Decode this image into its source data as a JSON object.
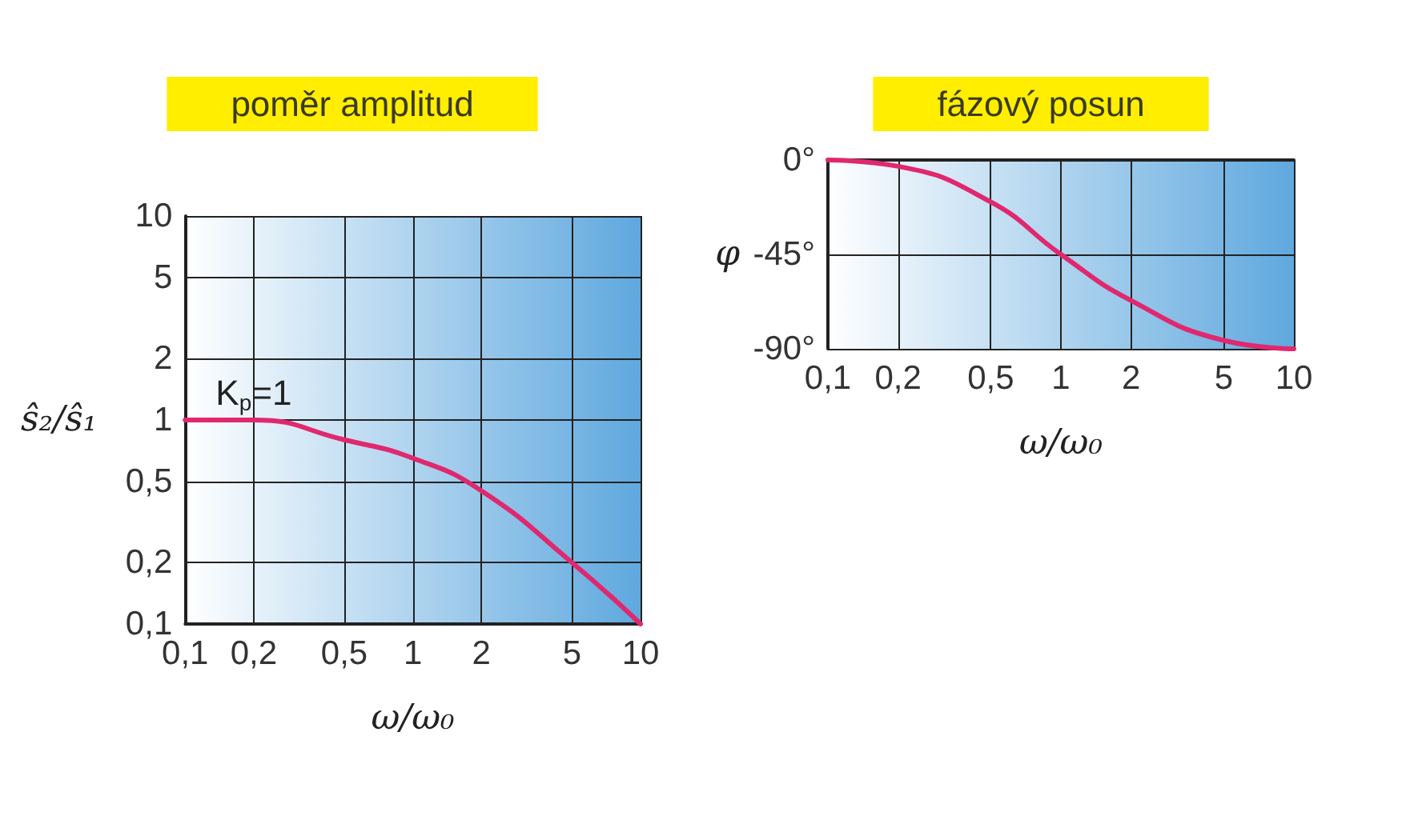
{
  "chart_data": [
    {
      "type": "line",
      "title": "poměr amplitud",
      "xlabel": "ω/ω₀",
      "ylabel": "ŝ₂/ŝ₁",
      "log": "xy",
      "grid": true,
      "marker": "none",
      "line_style": "solid",
      "x": [
        0.1,
        0.2,
        0.5,
        1,
        2,
        5,
        10
      ],
      "series": [
        {
          "color": "#e0286e",
          "values": [
            1,
            1,
            0.8,
            0.65,
            0.45,
            0.2,
            0.1
          ]
        }
      ],
      "xlim": [
        0.1,
        10
      ],
      "xticks": [
        {
          "value": 0.1,
          "label": "0,1"
        },
        {
          "value": 0.2,
          "label": "0,2"
        },
        {
          "value": 0.5,
          "label": "0,5"
        },
        1,
        2,
        5,
        10
      ],
      "ylim": [
        0.1,
        10
      ],
      "yticks": [
        {
          "value": 0.1,
          "label": "0,1"
        },
        {
          "value": 0.2,
          "label": "0,2"
        },
        {
          "value": 0.5,
          "label": "0,5"
        },
        1,
        2,
        5,
        10
      ],
      "annotations": [
        {
          "text": "K$_{p}$=1",
          "x": 0.2,
          "y": 1
        }
      ]
    },
    {
      "type": "line",
      "title": "fázový posun",
      "xlabel": "ω/ω₀",
      "ylabel": "φ",
      "log": "x",
      "grid": true,
      "marker": "none",
      "line_style": "solid",
      "x": [
        0.1,
        0.2,
        0.5,
        1,
        2,
        5,
        10
      ],
      "series": [
        {
          "color": "#e0286e",
          "values": [
            0,
            -3,
            -20,
            -45,
            -67,
            -86,
            -90
          ]
        }
      ],
      "xlim": [
        0.1,
        10
      ],
      "xticks": [
        {
          "value": 0.1,
          "label": "0,1"
        },
        {
          "value": 0.2,
          "label": "0,2"
        },
        {
          "value": 0.5,
          "label": "0,5"
        },
        1,
        2,
        5,
        10
      ],
      "ylim": [
        -90,
        0
      ],
      "yticks": [
        {
          "value": -90,
          "label": "-90°"
        },
        {
          "value": -45,
          "label": "-45°"
        },
        {
          "value": 0,
          "label": "0°"
        }
      ]
    }
  ]
}
